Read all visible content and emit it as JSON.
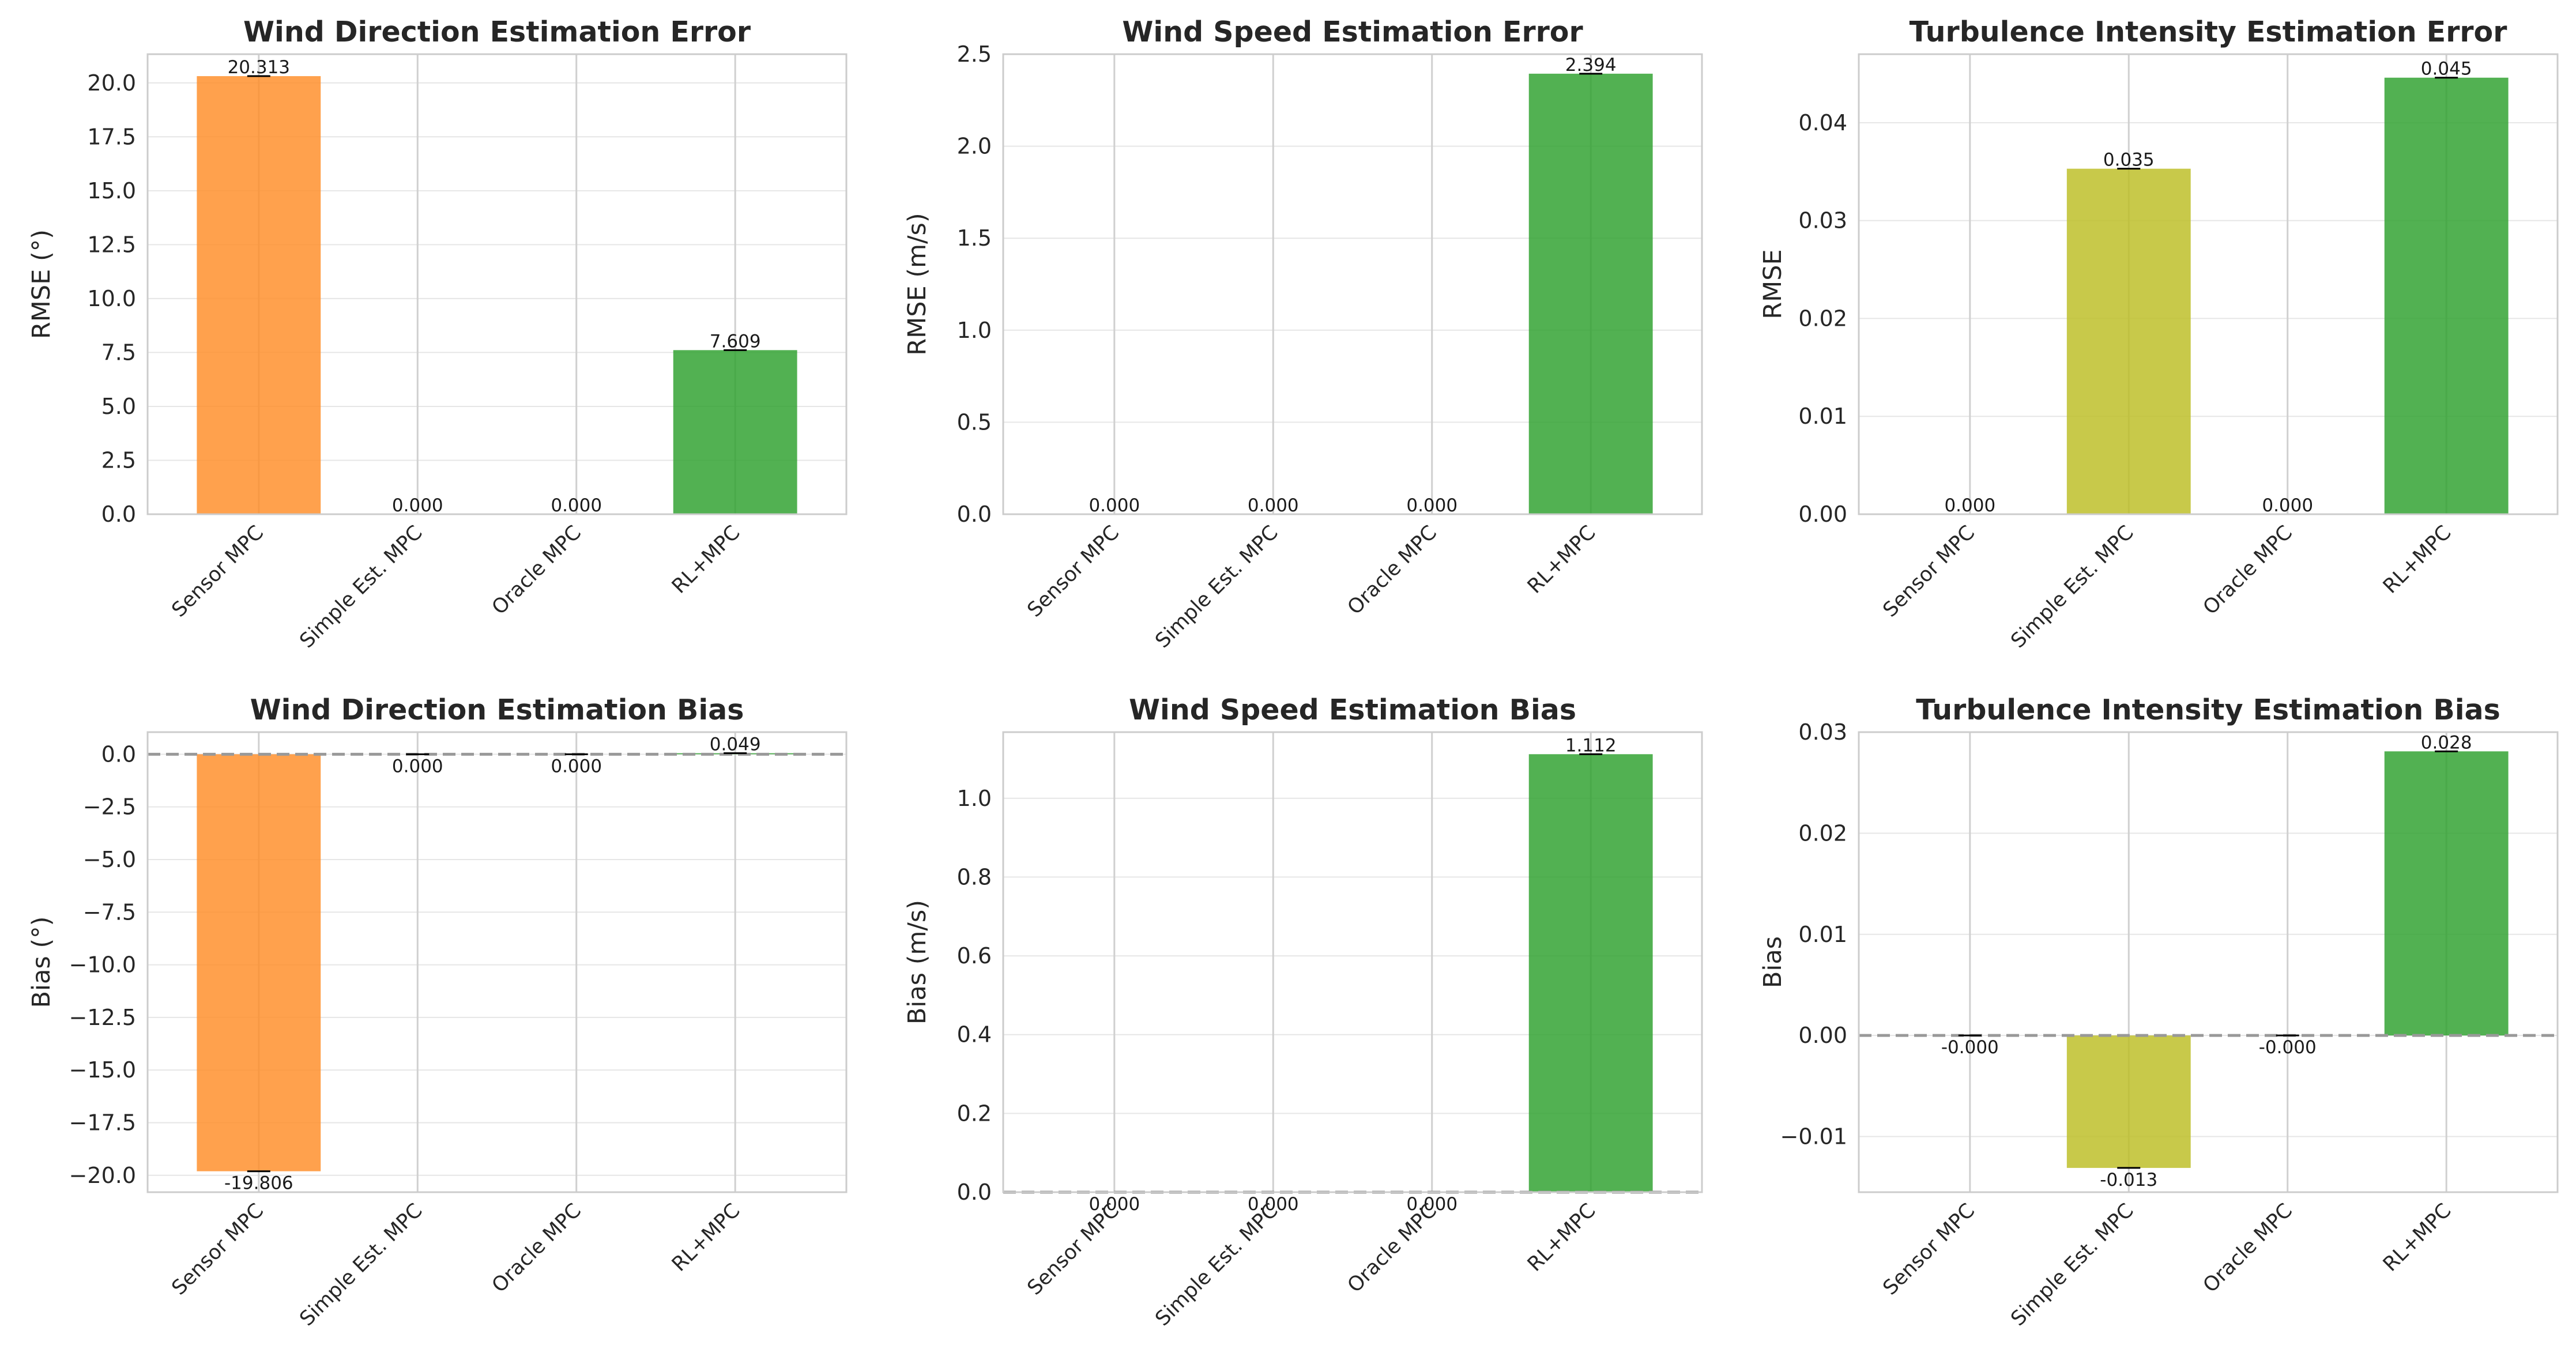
{
  "categories": [
    "Sensor MPC",
    "Simple Est. MPC",
    "Oracle MPC",
    "RL+MPC"
  ],
  "colors": {
    "bars": [
      "#ff8c26",
      "#bcbd22",
      "#9467bd",
      "#2ca02c"
    ],
    "grid": "#e6e6e6",
    "frame": "#cccccc",
    "zero_line": "#999999",
    "error_bar": "#000000"
  },
  "chart_data": [
    {
      "type": "bar",
      "title": "Wind Direction Estimation Error",
      "ylabel": "RMSE (°)",
      "ylim": [
        0,
        21.33
      ],
      "yticks": [
        0,
        2.5,
        5,
        7.5,
        10,
        12.5,
        15,
        17.5,
        20
      ],
      "yticklabels": [
        "0.0",
        "2.5",
        "5.0",
        "7.5",
        "10.0",
        "12.5",
        "15.0",
        "17.5",
        "20.0"
      ],
      "values": [
        20.313,
        0,
        0,
        7.609
      ],
      "labels": [
        "20.313",
        "0.000",
        "0.000",
        "7.609"
      ],
      "grid": true,
      "zero_line": false
    },
    {
      "type": "bar",
      "title": "Wind Speed Estimation Error",
      "ylabel": "RMSE (m/s)",
      "ylim": [
        0,
        2.5
      ],
      "yticks": [
        0,
        0.5,
        1,
        1.5,
        2,
        2.5
      ],
      "yticklabels": [
        "0.0",
        "0.5",
        "1.0",
        "1.5",
        "2.0",
        "2.5"
      ],
      "values": [
        0,
        0,
        0,
        2.394
      ],
      "labels": [
        "0.000",
        "0.000",
        "0.000",
        "2.394"
      ],
      "grid": true,
      "zero_line": false
    },
    {
      "type": "bar",
      "title": "Turbulence Intensity Estimation Error",
      "ylabel": "RMSE",
      "ylim": [
        0,
        0.047
      ],
      "yticks": [
        0,
        0.01,
        0.02,
        0.03,
        0.04
      ],
      "yticklabels": [
        "0.00",
        "0.01",
        "0.02",
        "0.03",
        "0.04"
      ],
      "values": [
        0,
        0.0353,
        0,
        0.0446
      ],
      "labels": [
        "0.000",
        "0.035",
        "0.000",
        "0.045"
      ],
      "grid": true,
      "zero_line": false
    },
    {
      "type": "bar",
      "title": "Wind Direction Estimation Bias",
      "ylabel": "Bias (°)",
      "ylim": [
        -20.8,
        1.05
      ],
      "yticks": [
        0,
        -2.5,
        -5,
        -7.5,
        -10,
        -12.5,
        -15,
        -17.5,
        -20
      ],
      "yticklabels": [
        "0.0",
        "−2.5",
        "−5.0",
        "−7.5",
        "−10.0",
        "−12.5",
        "−15.0",
        "−17.5",
        "−20.0"
      ],
      "values": [
        -19.806,
        0,
        0,
        0.049
      ],
      "labels": [
        "-19.806",
        "0.000",
        "0.000",
        "0.049"
      ],
      "grid": true,
      "zero_line": true
    },
    {
      "type": "bar",
      "title": "Wind Speed Estimation Bias",
      "ylabel": "Bias (m/s)",
      "ylim": [
        0,
        1.168
      ],
      "yticks": [
        0,
        0.2,
        0.4,
        0.6,
        0.8,
        1
      ],
      "yticklabels": [
        "0.0",
        "0.2",
        "0.4",
        "0.6",
        "0.8",
        "1.0"
      ],
      "values": [
        0,
        0,
        0,
        1.112
      ],
      "labels": [
        "0.000",
        "0.000",
        "0.000",
        "1.112"
      ],
      "grid": true,
      "zero_line": true
    },
    {
      "type": "bar",
      "title": "Turbulence Intensity Estimation Bias",
      "ylabel": "Bias",
      "ylim": [
        -0.0155,
        0.03
      ],
      "yticks": [
        -0.01,
        0,
        0.01,
        0.02,
        0.03
      ],
      "yticklabels": [
        "−0.01",
        "0.00",
        "0.01",
        "0.02",
        "0.03"
      ],
      "values": [
        0,
        -0.0131,
        0,
        0.0281
      ],
      "labels": [
        "-0.000",
        "-0.013",
        "-0.000",
        "0.028"
      ],
      "grid": true,
      "zero_line": true
    }
  ]
}
